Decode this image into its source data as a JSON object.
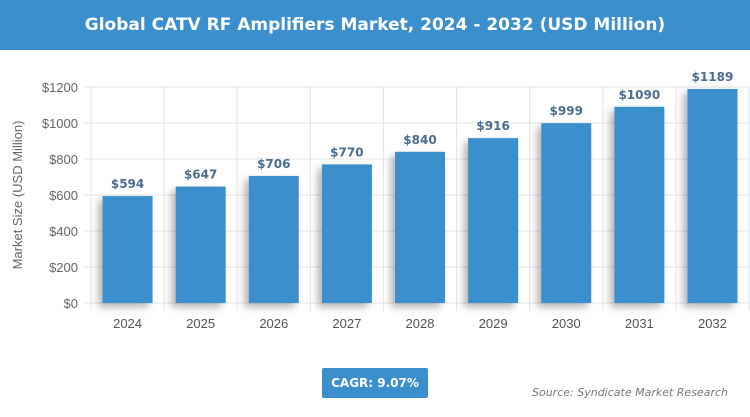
{
  "chart_data": {
    "type": "bar",
    "title": "Global CATV RF Amplifiers Market, 2024 - 2032 (USD Million)",
    "ylabel": "Market Size (USD Million)",
    "xlabel": "",
    "categories": [
      "2024",
      "2025",
      "2026",
      "2027",
      "2028",
      "2029",
      "2030",
      "2031",
      "2032"
    ],
    "values": [
      594,
      647,
      706,
      770,
      840,
      916,
      999,
      1090,
      1189
    ],
    "data_labels": [
      "$594",
      "$647",
      "$706",
      "$770",
      "$840",
      "$916",
      "$999",
      "$1090",
      "$1189"
    ],
    "ylim": [
      0,
      1200
    ],
    "yticks": [
      "$0",
      "$200",
      "$400",
      "$600",
      "$800",
      "$1000",
      "$1200"
    ],
    "grid": true,
    "bar_color": "#3b8fcc",
    "label_color": "#4a6d91"
  },
  "cagr": "CAGR: 9.07%",
  "source": "Source: Syndicate Market Research"
}
